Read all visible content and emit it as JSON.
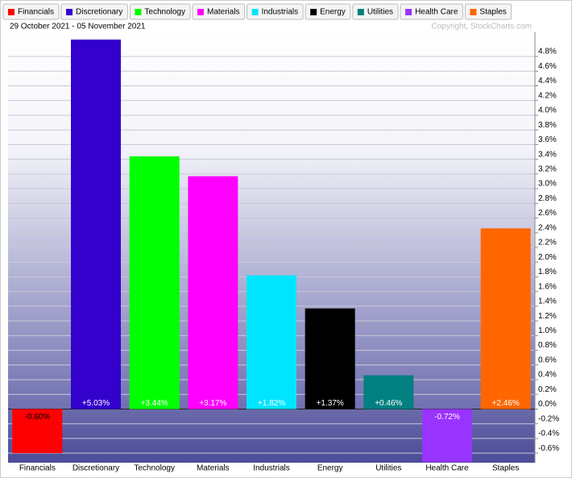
{
  "chart_data": {
    "type": "bar",
    "title": "29 October 2021 - 05 November 2021",
    "credit": "Copyright, StockCharts.com",
    "categories": [
      "Financials",
      "Discretionary",
      "Technology",
      "Materials",
      "Industrials",
      "Energy",
      "Utilities",
      "Health Care",
      "Staples"
    ],
    "values": [
      -0.6,
      5.03,
      3.44,
      3.17,
      1.82,
      1.37,
      0.46,
      -0.72,
      2.46
    ],
    "value_labels": [
      "-0.60%",
      "+5.03%",
      "+3.44%",
      "+3.17%",
      "+1.82%",
      "+1.37%",
      "+0.46%",
      "-0.72%",
      "+2.46%"
    ],
    "colors": [
      "#ff0000",
      "#3300cc",
      "#00ff00",
      "#ff00ff",
      "#00e5ff",
      "#000000",
      "#008080",
      "#9933ff",
      "#ff6600"
    ],
    "ylim": [
      -0.73,
      5.13
    ],
    "yticks": [
      {
        "value": -0.6,
        "label": "-0.6%"
      },
      {
        "value": -0.4,
        "label": "-0.4%"
      },
      {
        "value": -0.2,
        "label": "-0.2%"
      },
      {
        "value": 0,
        "label": "0.0%"
      },
      {
        "value": 0.2,
        "label": "0.2%"
      },
      {
        "value": 0.4,
        "label": "0.4%"
      },
      {
        "value": 0.6,
        "label": "0.6%"
      },
      {
        "value": 0.8,
        "label": "0.8%"
      },
      {
        "value": 1.0,
        "label": "1.0%"
      },
      {
        "value": 1.2,
        "label": "1.2%"
      },
      {
        "value": 1.4,
        "label": "1.4%"
      },
      {
        "value": 1.6,
        "label": "1.6%"
      },
      {
        "value": 1.8,
        "label": "1.8%"
      },
      {
        "value": 2.0,
        "label": "2.0%"
      },
      {
        "value": 2.2,
        "label": "2.2%"
      },
      {
        "value": 2.4,
        "label": "2.4%"
      },
      {
        "value": 2.6,
        "label": "2.6%"
      },
      {
        "value": 2.8,
        "label": "2.8%"
      },
      {
        "value": 3.0,
        "label": "3.0%"
      },
      {
        "value": 3.2,
        "label": "3.2%"
      },
      {
        "value": 3.4,
        "label": "3.4%"
      },
      {
        "value": 3.6,
        "label": "3.6%"
      },
      {
        "value": 3.8,
        "label": "3.8%"
      },
      {
        "value": 4.0,
        "label": "4.0%"
      },
      {
        "value": 4.2,
        "label": "4.2%"
      },
      {
        "value": 4.4,
        "label": "4.4%"
      },
      {
        "value": 4.6,
        "label": "4.6%"
      },
      {
        "value": 4.8,
        "label": "4.8%"
      }
    ],
    "grid": true
  }
}
